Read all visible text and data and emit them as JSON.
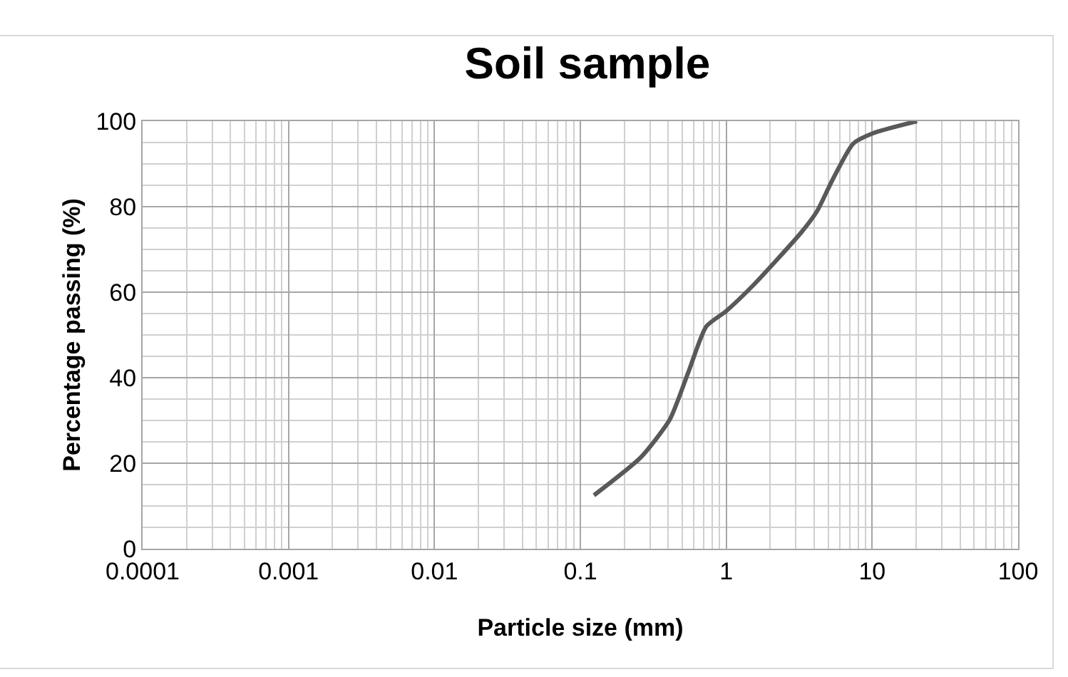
{
  "chart_data": {
    "type": "line",
    "title": "Soil sample",
    "xlabel": "Particle size (mm)",
    "ylabel": "Percentage passing (%)",
    "log": "x",
    "grid": true,
    "marker": "none",
    "line_style": "solid",
    "xlim": [
      0.0001,
      100
    ],
    "xticks": [
      0.0001,
      0.001,
      0.01,
      0.1,
      1,
      10,
      100
    ],
    "ylim": [
      0,
      100
    ],
    "yticks": [
      0,
      20,
      40,
      60,
      80,
      100
    ],
    "x": [
      0.124,
      0.26,
      0.41,
      0.55,
      0.73,
      1,
      1.57,
      3.27,
      4.2,
      5.3,
      7.4,
      10.2,
      20.3
    ],
    "series": [
      {
        "color": "#595959",
        "values": [
          12.5,
          21.4,
          30.2,
          41.3,
          52,
          55.6,
          62,
          74,
          79,
          86,
          94.7,
          97.2,
          100
        ]
      }
    ]
  }
}
